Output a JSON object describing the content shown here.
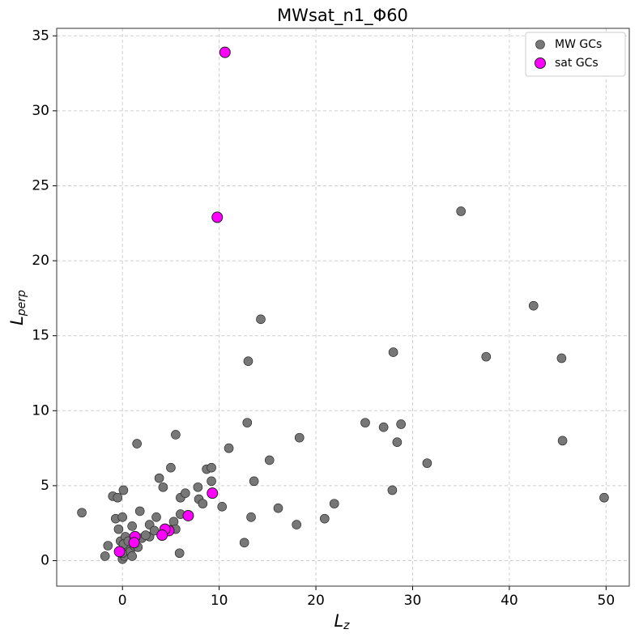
{
  "chart_data": {
    "type": "scatter",
    "title": "MWsat_n1_Φ60",
    "xlabel": {
      "base": "L",
      "sub": "z"
    },
    "ylabel": {
      "base": "L",
      "sub": "perp"
    },
    "xlim": [
      -6.8,
      52.4
    ],
    "ylim": [
      -1.7,
      35.5
    ],
    "xticks": [
      0,
      10,
      20,
      30,
      40,
      50
    ],
    "yticks": [
      0,
      5,
      10,
      15,
      20,
      25,
      30,
      35
    ],
    "grid": true,
    "legend": "upper right",
    "series": [
      {
        "name": "MW GCs",
        "color": "#777777",
        "x": [
          -4.2,
          -1.8,
          -1.5,
          -1.0,
          -0.7,
          -0.5,
          -0.4,
          -0.2,
          0,
          0.1,
          0,
          0.2,
          0.3,
          0.5,
          0.8,
          1.0,
          1.0,
          1.2,
          1.5,
          1.6,
          1.8,
          2.0,
          2.8,
          2.8,
          3.3,
          3.5,
          3.8,
          4.2,
          5.0,
          5.3,
          5.5,
          5.5,
          5.9,
          6.0,
          6.0,
          6.5,
          7.8,
          7.9,
          8.3,
          8.7,
          9.2,
          9.2,
          10.3,
          11.0,
          12.6,
          12.9,
          13.0,
          13.3,
          13.6,
          14.3,
          15.2,
          16.1,
          18.0,
          18.3,
          20.9,
          21.9,
          25.1,
          27.0,
          28.0,
          27.9,
          28.4,
          28.8,
          31.5,
          35.0,
          37.6,
          42.5,
          45.4,
          45.5,
          49.8,
          0,
          0.1,
          0.6,
          2.4
        ],
        "y": [
          3.2,
          0.3,
          1.0,
          4.3,
          2.8,
          4.2,
          2.1,
          1.3,
          2.9,
          4.7,
          0.1,
          0.3,
          1.6,
          0.9,
          0.6,
          2.3,
          0.3,
          1.0,
          7.8,
          0.9,
          3.3,
          1.5,
          1.6,
          2.4,
          2.0,
          2.9,
          5.5,
          4.9,
          6.2,
          2.6,
          2.1,
          8.4,
          0.5,
          3.1,
          4.2,
          4.5,
          4.9,
          4.1,
          3.8,
          6.1,
          6.2,
          5.3,
          3.6,
          7.5,
          1.2,
          9.2,
          13.3,
          2.9,
          5.3,
          16.1,
          6.7,
          3.5,
          2.4,
          8.2,
          2.8,
          3.8,
          9.2,
          8.9,
          13.9,
          4.7,
          7.9,
          9.1,
          6.5,
          23.3,
          13.6,
          17.0,
          13.5,
          8.0,
          4.2,
          0.5,
          1.1,
          1.3,
          1.7
        ]
      },
      {
        "name": "sat GCs",
        "color": "#ff00ff",
        "x": [
          10.6,
          9.8,
          9.3,
          6.8,
          4.8,
          4.4,
          4.1,
          1.3,
          1.2,
          -0.3
        ],
        "y": [
          33.9,
          22.9,
          4.5,
          3.0,
          2.0,
          2.1,
          1.7,
          1.6,
          1.2,
          0.6
        ]
      }
    ]
  }
}
